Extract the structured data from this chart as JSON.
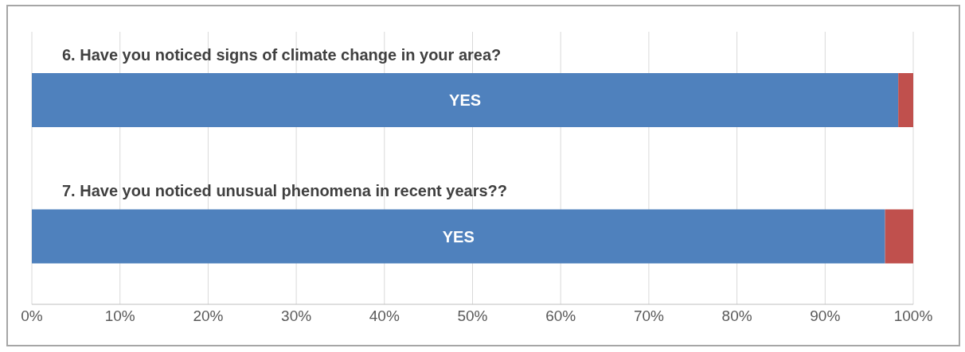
{
  "chart_data": {
    "type": "bar",
    "orientation": "horizontal",
    "stacked": true,
    "categories": [
      "6. Have you noticed signs of climate change  in your area?",
      "7. Have you noticed unusual phenomena in recent years??"
    ],
    "series": [
      {
        "name": "YES",
        "color": "#4f81bd",
        "values": [
          98.3,
          96.8
        ]
      },
      {
        "color": "#c0504d",
        "values": [
          1.7,
          3.2
        ]
      }
    ],
    "xlim": [
      0,
      100
    ],
    "xticks": [
      {
        "value": 0,
        "label": "0%"
      },
      {
        "value": 10,
        "label": "10%"
      },
      {
        "value": 20,
        "label": "20%"
      },
      {
        "value": 30,
        "label": "30%"
      },
      {
        "value": 40,
        "label": "40%"
      },
      {
        "value": 50,
        "label": "50%"
      },
      {
        "value": 60,
        "label": "60%"
      },
      {
        "value": 70,
        "label": "70%"
      },
      {
        "value": 80,
        "label": "80%"
      },
      {
        "value": 90,
        "label": "90%"
      },
      {
        "value": 100,
        "label": "100%"
      }
    ],
    "grid": "x",
    "legend": false
  }
}
